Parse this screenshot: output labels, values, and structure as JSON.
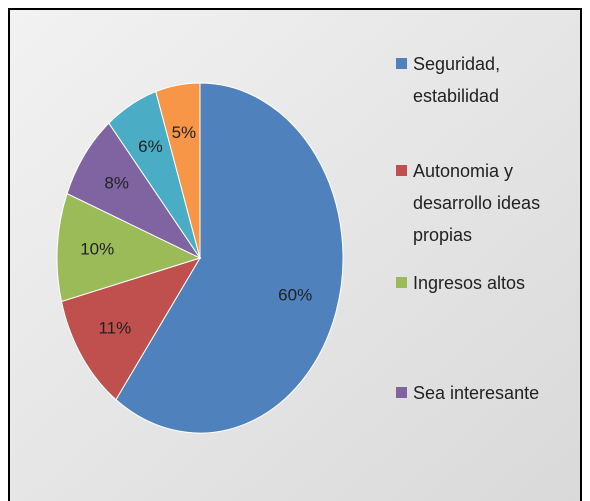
{
  "chart_data": {
    "type": "pie",
    "categories": [
      "Seguridad, estabilidad",
      "Autonomia y desarrollo ideas propias",
      "Ingresos altos",
      "Sea interesante",
      null,
      null
    ],
    "values": [
      60,
      11,
      10,
      8,
      6,
      5
    ],
    "value_labels": [
      "60%",
      "11%",
      "10%",
      "8%",
      "6%",
      "5%"
    ],
    "colors": [
      "#4f81bd",
      "#c0504d",
      "#9bbb59",
      "#8064a2",
      "#4bacc6",
      "#f79646"
    ],
    "legend": "right"
  }
}
